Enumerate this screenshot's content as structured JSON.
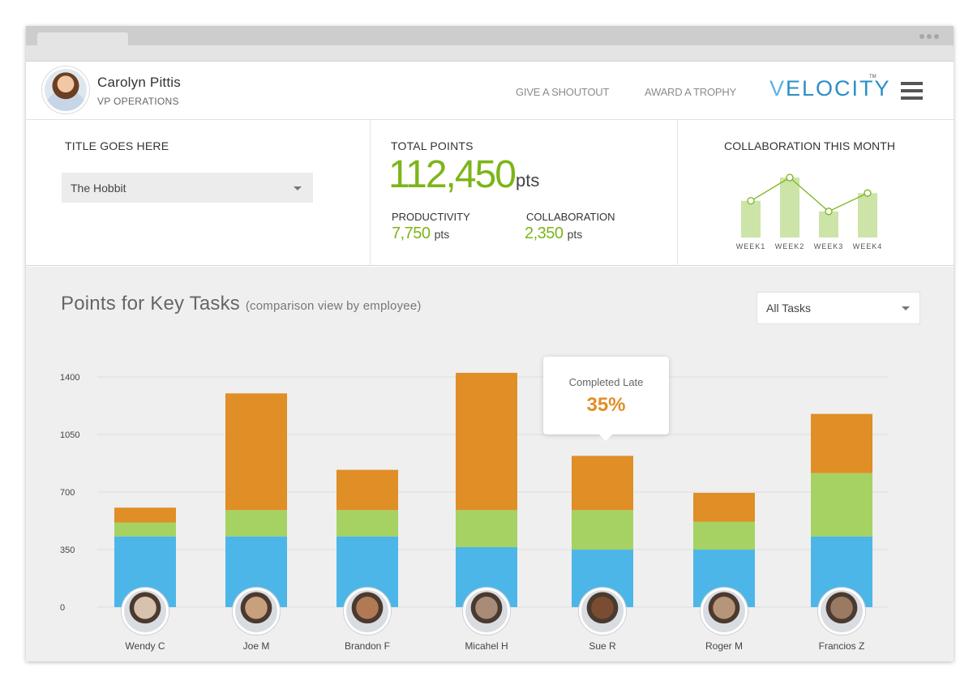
{
  "user": {
    "name": "Carolyn Pittis",
    "title": "VP OPERATIONS"
  },
  "nav": {
    "shoutout": "GIVE A SHOUTOUT",
    "trophy": "AWARD A TROPHY"
  },
  "logo": {
    "first": "V",
    "rest": "ELOCITY",
    "tm": "TM"
  },
  "stats": {
    "title_label": "TITLE GOES HERE",
    "title_select": "The Hobbit",
    "total_label": "TOTAL POINTS",
    "total_value": "112,450",
    "unit": "pts",
    "productivity_label": "PRODUCTIVITY",
    "productivity_value": "7,750",
    "collaboration_label": "COLLABORATION",
    "collaboration_value": "2,350"
  },
  "collab_chart_title": "COLLABORATION THIS MONTH",
  "key_tasks": {
    "title": "Points for Key Tasks",
    "subtitle": "(comparison view by employee)",
    "filter": "All Tasks"
  },
  "tooltip": {
    "label": "Completed Late",
    "value": "35%"
  },
  "colors": {
    "blue": "#4db6e8",
    "green": "#a6d263",
    "orange": "#e08e26",
    "accent_green": "#7cb518",
    "light_green": "#cde4a8"
  },
  "chart_data": [
    {
      "type": "bar",
      "title": "COLLABORATION THIS MONTH",
      "categories": [
        "WEEK1",
        "WEEK2",
        "WEEK3",
        "WEEK4"
      ],
      "values": [
        52,
        85,
        37,
        63
      ],
      "line_values": [
        52,
        85,
        37,
        63
      ],
      "ylim": [
        0,
        100
      ],
      "grid": false
    },
    {
      "type": "bar",
      "stacked": true,
      "title": "Points for Key Tasks",
      "categories": [
        "Wendy C",
        "Joe M",
        "Brandon F",
        "Micahel H",
        "Sue R",
        "Roger M",
        "Francios Z"
      ],
      "yticks": [
        0,
        350,
        700,
        1050,
        1400
      ],
      "ylim": [
        0,
        1400
      ],
      "grid": true,
      "series": [
        {
          "color": "#4db6e8",
          "values": [
            430,
            430,
            430,
            365,
            350,
            350,
            430
          ]
        },
        {
          "color": "#a6d263",
          "values": [
            85,
            160,
            160,
            225,
            240,
            170,
            385
          ]
        },
        {
          "color": "#e08e26",
          "values": [
            90,
            710,
            245,
            835,
            330,
            175,
            360
          ]
        }
      ]
    }
  ],
  "employees": [
    {
      "name": "Wendy C",
      "avatar_color": "#d9c2ad"
    },
    {
      "name": "Joe M",
      "avatar_color": "#c9a07c"
    },
    {
      "name": "Brandon F",
      "avatar_color": "#b27a54"
    },
    {
      "name": "Micahel H",
      "avatar_color": "#a88c78"
    },
    {
      "name": "Sue R",
      "avatar_color": "#7a4d33"
    },
    {
      "name": "Roger M",
      "avatar_color": "#b79578"
    },
    {
      "name": "Francios Z",
      "avatar_color": "#9a7a62"
    }
  ]
}
